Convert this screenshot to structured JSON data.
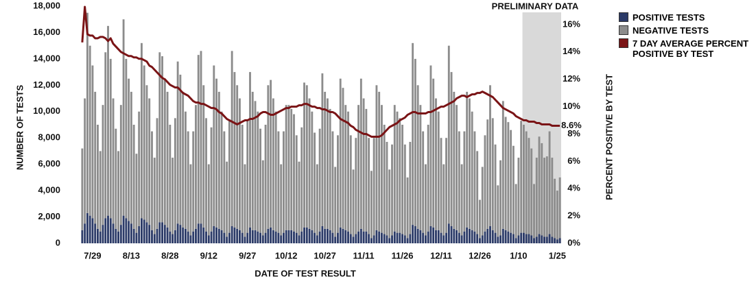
{
  "chart_data": {
    "type": "bar_line",
    "x_label": "DATE OF TEST RESULT",
    "y_label": "NUMBER OF TESTS",
    "y2_label": "PERCENT POSITIVE BY TEST",
    "annotation": "PRELIMINARY DATA",
    "shaded_start": 171,
    "end_label": "8.6%",
    "categories": [
      null,
      null,
      null,
      null,
      "7/29",
      null,
      null,
      null,
      null,
      null,
      null,
      null,
      null,
      null,
      null,
      null,
      null,
      null,
      null,
      "8/13",
      null,
      null,
      null,
      null,
      null,
      null,
      null,
      null,
      null,
      null,
      null,
      null,
      null,
      null,
      "8/28",
      null,
      null,
      null,
      null,
      null,
      null,
      null,
      null,
      null,
      null,
      null,
      null,
      null,
      null,
      "9/12",
      null,
      null,
      null,
      null,
      null,
      null,
      null,
      null,
      null,
      null,
      null,
      null,
      null,
      null,
      "9/27",
      null,
      null,
      null,
      null,
      null,
      null,
      null,
      null,
      null,
      null,
      null,
      null,
      null,
      null,
      "10/12",
      null,
      null,
      null,
      null,
      null,
      null,
      null,
      null,
      null,
      null,
      null,
      null,
      null,
      null,
      "10/27",
      null,
      null,
      null,
      null,
      null,
      null,
      null,
      null,
      null,
      null,
      null,
      null,
      null,
      null,
      "11/11",
      null,
      null,
      null,
      null,
      null,
      null,
      null,
      null,
      null,
      null,
      null,
      null,
      null,
      null,
      "11/26",
      null,
      null,
      null,
      null,
      null,
      null,
      null,
      null,
      null,
      null,
      null,
      null,
      null,
      null,
      "12/11",
      null,
      null,
      null,
      null,
      null,
      null,
      null,
      null,
      null,
      null,
      null,
      null,
      null,
      null,
      "12/26",
      null,
      null,
      null,
      null,
      null,
      null,
      null,
      null,
      null,
      null,
      null,
      null,
      null,
      null,
      "1/10",
      null,
      null,
      null,
      null,
      null,
      null,
      null,
      null,
      null,
      null,
      null,
      null,
      null,
      null,
      "1/25",
      null
    ],
    "series": [
      {
        "name": "POSITIVE TESTS",
        "color": "#2b3a67",
        "values": [
          1000,
          1500,
          2300,
          2100,
          1900,
          1500,
          1100,
          900,
          1400,
          1900,
          2100,
          1900,
          1500,
          1100,
          900,
          1400,
          2100,
          1900,
          1700,
          1500,
          1100,
          800,
          1300,
          1900,
          1800,
          1600,
          1400,
          1000,
          700,
          1100,
          1600,
          1600,
          1400,
          1200,
          900,
          700,
          1000,
          1500,
          1400,
          1200,
          1100,
          900,
          600,
          900,
          1100,
          1500,
          1500,
          1200,
          900,
          600,
          900,
          1300,
          1200,
          1100,
          1000,
          800,
          500,
          800,
          1300,
          1200,
          1100,
          1000,
          800,
          500,
          800,
          1200,
          1000,
          1000,
          900,
          800,
          600,
          800,
          1100,
          1200,
          1000,
          900,
          800,
          600,
          800,
          1000,
          1000,
          1000,
          900,
          800,
          600,
          900,
          1200,
          1200,
          1100,
          1000,
          800,
          600,
          900,
          1300,
          1100,
          1100,
          1000,
          800,
          500,
          800,
          1200,
          1100,
          1000,
          900,
          700,
          500,
          700,
          900,
          1100,
          900,
          900,
          700,
          400,
          600,
          1000,
          900,
          800,
          700,
          600,
          400,
          600,
          900,
          800,
          800,
          700,
          600,
          400,
          700,
          1400,
          1300,
          1100,
          1000,
          800,
          600,
          900,
          1300,
          1200,
          1000,
          1000,
          800,
          600,
          800,
          1500,
          1300,
          1100,
          1000,
          800,
          600,
          900,
          1200,
          1100,
          1000,
          900,
          700,
          400,
          600,
          900,
          1100,
          1300,
          1000,
          800,
          500,
          600,
          1100,
          1000,
          900,
          800,
          700,
          400,
          600,
          800,
          800,
          700,
          700,
          600,
          400,
          500,
          700,
          600,
          500,
          500,
          700,
          500,
          400,
          300,
          400
        ]
      },
      {
        "name": "NEGATIVE TESTS",
        "color": "#8c8c8c",
        "values": [
          6200,
          9500,
          15200,
          12900,
          11600,
          10000,
          7900,
          6100,
          9100,
          12600,
          14400,
          12100,
          9500,
          7600,
          6100,
          9100,
          14900,
          12100,
          10800,
          10000,
          7900,
          6000,
          8700,
          13300,
          11700,
          10400,
          9600,
          7500,
          5800,
          8400,
          12900,
          12600,
          11100,
          10300,
          8100,
          5800,
          8500,
          12300,
          11400,
          10300,
          8900,
          7600,
          5400,
          7600,
          9400,
          12800,
          13100,
          10800,
          8600,
          5400,
          7900,
          12200,
          11300,
          10400,
          9000,
          7700,
          5700,
          8600,
          13300,
          11800,
          10900,
          10000,
          8200,
          5500,
          8500,
          11800,
          10500,
          9800,
          9100,
          7900,
          5700,
          8200,
          10900,
          11200,
          10000,
          9100,
          7700,
          5400,
          7700,
          9500,
          9500,
          9200,
          8900,
          7400,
          5600,
          7900,
          11000,
          10800,
          9900,
          9000,
          7600,
          5400,
          7800,
          11600,
          10400,
          9900,
          9200,
          7700,
          5300,
          7400,
          11300,
          10700,
          9500,
          9100,
          7500,
          5100,
          7300,
          9600,
          11400,
          10100,
          9300,
          7300,
          5100,
          7400,
          11000,
          10600,
          9700,
          8300,
          7100,
          5200,
          6900,
          9600,
          9200,
          8700,
          8300,
          6900,
          4600,
          7000,
          13800,
          12700,
          10900,
          9500,
          7700,
          5400,
          8100,
          12200,
          11300,
          10000,
          9000,
          7200,
          5400,
          7200,
          13500,
          11700,
          10400,
          9500,
          7700,
          5400,
          7600,
          10300,
          9900,
          9000,
          7600,
          6300,
          2900,
          5200,
          7300,
          8300,
          10700,
          8500,
          6700,
          3900,
          5700,
          9700,
          8600,
          8300,
          7800,
          6700,
          4100,
          5900,
          8500,
          8200,
          7800,
          7300,
          6600,
          4100,
          6000,
          7400,
          7000,
          6000,
          6100,
          7800,
          6000,
          4500,
          3700,
          4600
        ]
      },
      {
        "name": "7 DAY AVERAGE PERCENT POSITIVE BY TEST",
        "color": "#7a1416",
        "axis": "y2",
        "values": [
          14.7,
          17.3,
          15.3,
          15.2,
          15.2,
          15.0,
          15.0,
          15.1,
          15.1,
          15.0,
          14.8,
          15.0,
          14.6,
          14.4,
          14.2,
          14.0,
          13.9,
          13.8,
          13.7,
          13.7,
          13.6,
          13.6,
          13.5,
          13.5,
          13.4,
          13.3,
          13.0,
          12.9,
          12.7,
          12.5,
          12.3,
          12.1,
          12.0,
          11.8,
          11.6,
          11.5,
          11.4,
          11.4,
          11.2,
          11.0,
          10.9,
          10.8,
          10.6,
          10.4,
          10.3,
          10.3,
          10.2,
          10.2,
          10.1,
          10.0,
          9.9,
          9.9,
          9.8,
          9.6,
          9.5,
          9.3,
          9.1,
          9.0,
          8.9,
          8.8,
          8.7,
          8.8,
          8.9,
          9.0,
          9.0,
          9.1,
          9.1,
          9.2,
          9.3,
          9.5,
          9.6,
          9.6,
          9.5,
          9.4,
          9.4,
          9.5,
          9.6,
          9.7,
          9.8,
          9.9,
          9.9,
          10.0,
          10.0,
          10.0,
          10.1,
          10.1,
          10.2,
          10.2,
          10.1,
          10.0,
          10.0,
          9.9,
          9.9,
          9.8,
          9.8,
          9.7,
          9.6,
          9.6,
          9.5,
          9.3,
          9.1,
          9.0,
          8.9,
          8.8,
          8.6,
          8.5,
          8.3,
          8.2,
          8.1,
          8.0,
          8.0,
          7.9,
          7.8,
          7.8,
          7.8,
          7.8,
          7.9,
          8.1,
          8.3,
          8.5,
          8.6,
          8.7,
          8.8,
          9.0,
          9.1,
          9.2,
          9.4,
          9.5,
          9.6,
          9.6,
          9.5,
          9.5,
          9.5,
          9.5,
          9.6,
          9.6,
          9.7,
          9.8,
          9.9,
          10.0,
          10.0,
          10.1,
          10.2,
          10.3,
          10.4,
          10.6,
          10.7,
          10.8,
          10.8,
          10.7,
          10.8,
          10.9,
          10.9,
          11.0,
          11.0,
          11.1,
          11.0,
          10.9,
          10.8,
          10.7,
          10.5,
          10.3,
          10.1,
          9.9,
          9.8,
          9.7,
          9.6,
          9.5,
          9.3,
          9.2,
          9.1,
          9.0,
          9.0,
          8.9,
          8.9,
          8.9,
          8.8,
          8.8,
          8.7,
          8.7,
          8.7,
          8.7,
          8.6,
          8.6,
          8.6,
          8.6
        ]
      }
    ],
    "ylim": [
      0,
      18000
    ],
    "yticks": [
      0,
      {
        "value": 2000,
        "label": "2,000"
      },
      {
        "value": 4000,
        "label": "4,000"
      },
      {
        "value": 6000,
        "label": "6,000"
      },
      {
        "value": 8000,
        "label": "8,000"
      },
      {
        "value": 10000,
        "label": "10,000"
      },
      {
        "value": 12000,
        "label": "12,000"
      },
      {
        "value": 14000,
        "label": "14,000"
      },
      {
        "value": 16000,
        "label": "16,000"
      },
      {
        "value": 18000,
        "label": "18,000"
      }
    ],
    "y2lim": [
      0,
      17.35
    ],
    "y2ticks": [
      {
        "value": 0,
        "label": "0%"
      },
      {
        "value": 2,
        "label": "2%"
      },
      {
        "value": 4,
        "label": "4%"
      },
      {
        "value": 6,
        "label": "6%"
      },
      {
        "value": 8,
        "label": "8%"
      },
      {
        "value": 10,
        "label": "10%"
      },
      {
        "value": 12,
        "label": "12%"
      },
      {
        "value": 14,
        "label": "14%"
      },
      {
        "value": 16,
        "label": "16%"
      }
    ],
    "legend": "right"
  }
}
